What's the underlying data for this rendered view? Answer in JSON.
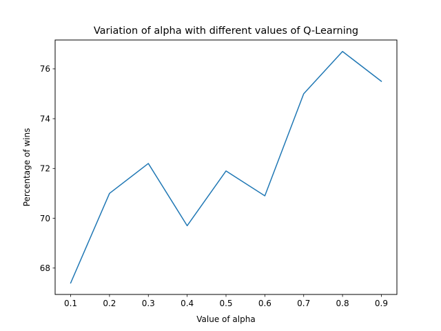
{
  "chart_data": {
    "type": "line",
    "title": "Variation of alpha with different values of Q-Learning",
    "xlabel": "Value of alpha",
    "ylabel": "Percentage of wins",
    "x": [
      0.1,
      0.2,
      0.3,
      0.4,
      0.5,
      0.6,
      0.7,
      0.8,
      0.9
    ],
    "series": [
      {
        "values": [
          67.4,
          71.0,
          72.2,
          69.7,
          71.9,
          70.9,
          75.0,
          76.7,
          75.5
        ],
        "color": "#1f77b4"
      }
    ],
    "xlim": [
      0.06,
      0.94
    ],
    "ylim": [
      66.94,
      77.16
    ],
    "xticks": [
      "0.1",
      "0.2",
      "0.3",
      "0.4",
      "0.5",
      "0.6",
      "0.7",
      "0.8",
      "0.9"
    ],
    "yticks": [
      "68",
      "70",
      "72",
      "74",
      "76"
    ],
    "grid": false
  }
}
